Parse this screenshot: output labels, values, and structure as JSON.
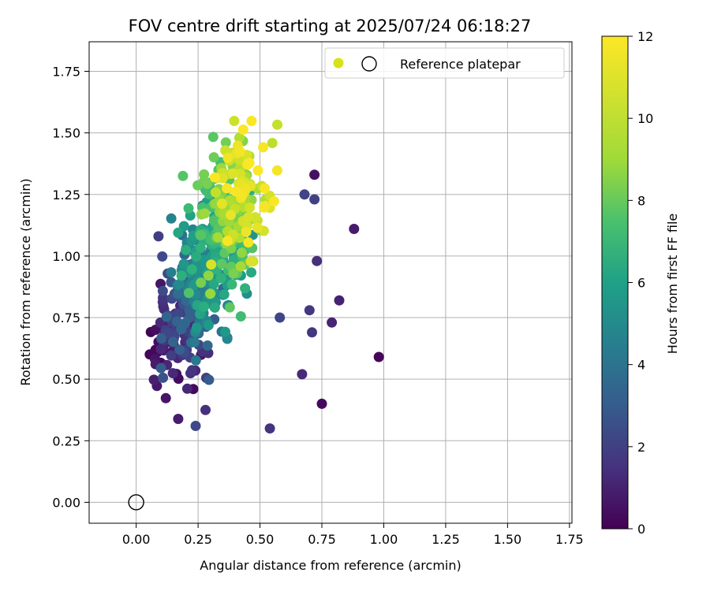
{
  "chart_data": {
    "type": "scatter",
    "title": "FOV centre drift starting at 2025/07/24 06:18:27",
    "xlabel": "Angular distance from reference (arcmin)",
    "ylabel": "Rotation from reference (arcmin)",
    "xlim": [
      -0.19,
      1.76
    ],
    "ylim": [
      -0.085,
      1.87
    ],
    "x_ticks": [
      0.0,
      0.25,
      0.5,
      0.75,
      1.0,
      1.25,
      1.5,
      1.75
    ],
    "x_tick_labels": [
      "0.00",
      "0.25",
      "0.50",
      "0.75",
      "1.00",
      "1.25",
      "1.50",
      "1.75"
    ],
    "y_ticks": [
      0.0,
      0.25,
      0.5,
      0.75,
      1.0,
      1.25,
      1.5,
      1.75
    ],
    "y_tick_labels": [
      "0.00",
      "0.25",
      "0.50",
      "0.75",
      "1.00",
      "1.25",
      "1.50",
      "1.75"
    ],
    "grid": true,
    "legend": {
      "placement": "top-right",
      "entries": [
        "Reference platepar"
      ]
    },
    "colorbar": {
      "label": "Hours from first FF file",
      "colormap": "viridis",
      "range": [
        0,
        12
      ],
      "ticks": [
        0,
        2,
        4,
        6,
        8,
        10,
        12
      ],
      "tick_labels": [
        "0",
        "2",
        "4",
        "6",
        "8",
        "10",
        "12"
      ]
    },
    "reference": {
      "x": 0.0,
      "y": 0.0
    },
    "cluster_hint": "about 600 points coloured by hours; drift grows with time",
    "points": [
      [
        0.98,
        0.59,
        0.2
      ],
      [
        0.75,
        0.4,
        0.3
      ],
      [
        0.72,
        1.33,
        0.5
      ],
      [
        0.88,
        1.11,
        0.9
      ],
      [
        0.82,
        0.82,
        1.1
      ],
      [
        0.79,
        0.73,
        1.2
      ],
      [
        0.67,
        0.52,
        1.4
      ],
      [
        0.73,
        0.98,
        1.6
      ],
      [
        0.54,
        0.3,
        1.8
      ],
      [
        0.71,
        0.69,
        1.9
      ],
      [
        0.7,
        0.78,
        2.0
      ],
      [
        0.09,
        1.08,
        2.2
      ],
      [
        0.72,
        1.23,
        2.3
      ],
      [
        0.24,
        0.31,
        2.6
      ],
      [
        0.68,
        1.25,
        2.4
      ],
      [
        0.58,
        0.75,
        2.5
      ]
    ]
  }
}
